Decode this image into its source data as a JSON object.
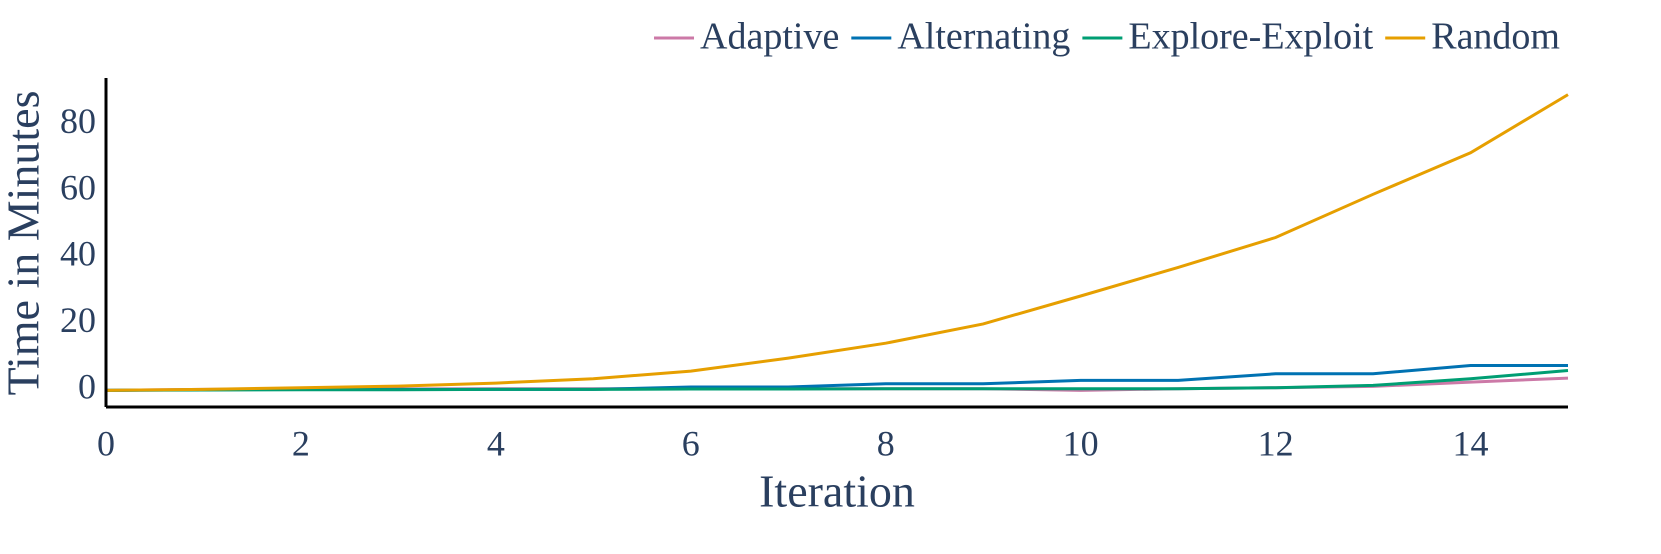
{
  "chart_data": {
    "type": "line",
    "x_label": "Iteration",
    "y_label": "Time in Minutes",
    "x": [
      0,
      1,
      2,
      3,
      4,
      5,
      6,
      7,
      8,
      9,
      10,
      11,
      12,
      13,
      14,
      15
    ],
    "series": [
      {
        "name": "Adaptive",
        "color": "#cc79a7",
        "values": [
          0,
          0.3,
          0.4,
          0.4,
          0.5,
          0.5,
          0.5,
          0.5,
          0.5,
          0.5,
          0,
          0.5,
          0.8,
          1.2,
          2.5,
          3.7
        ]
      },
      {
        "name": "Alternating",
        "color": "#0072b2",
        "values": [
          0,
          0.2,
          0.3,
          0.3,
          0.3,
          0.3,
          1,
          1,
          2,
          2,
          3,
          3,
          5,
          5,
          7.5,
          7.5
        ]
      },
      {
        "name": "Explore-Exploit",
        "color": "#009e73",
        "values": [
          0,
          0.1,
          0.2,
          0.2,
          0.3,
          0.3,
          0.4,
          0.4,
          0.5,
          0.5,
          0.5,
          0.5,
          0.8,
          1.5,
          3.5,
          6
        ]
      },
      {
        "name": "Random",
        "color": "#e69f00",
        "values": [
          0,
          0.3,
          0.8,
          1.3,
          2.2,
          3.5,
          5.8,
          9.7,
          14.2,
          20,
          28.4,
          37,
          46,
          59,
          71.5,
          89
        ]
      }
    ],
    "xlim": [
      0,
      15
    ],
    "ylim": [
      -5,
      94
    ],
    "xticks": [
      0,
      2,
      4,
      6,
      8,
      10,
      12,
      14
    ],
    "yticks": [
      0,
      20,
      40,
      60,
      80
    ]
  }
}
